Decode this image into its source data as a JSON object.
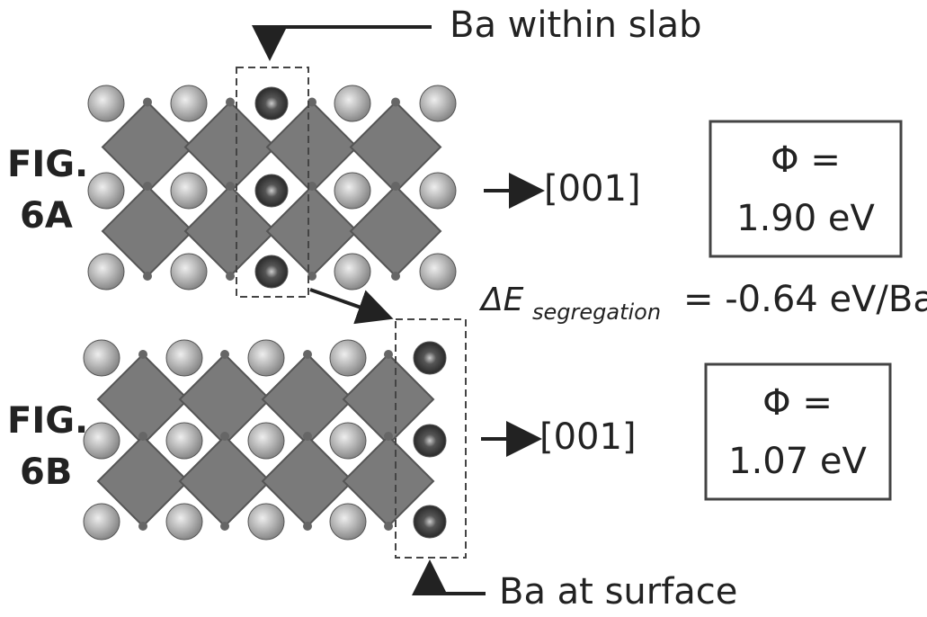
{
  "callouts": {
    "top": "Ba within slab",
    "bottom": "Ba at surface"
  },
  "panels": [
    {
      "fig": [
        "FIG.",
        "6A"
      ],
      "direction": "[001]",
      "phi": [
        "Φ =",
        "1.90 eV"
      ]
    },
    {
      "fig": [
        "FIG.",
        "6B"
      ],
      "direction": "[001]",
      "phi": [
        "Φ =",
        "1.07 eV"
      ]
    }
  ],
  "segregation": {
    "symbol": "ΔE",
    "subscript": "segregation",
    "value": "= -0.64 eV/Ba"
  }
}
